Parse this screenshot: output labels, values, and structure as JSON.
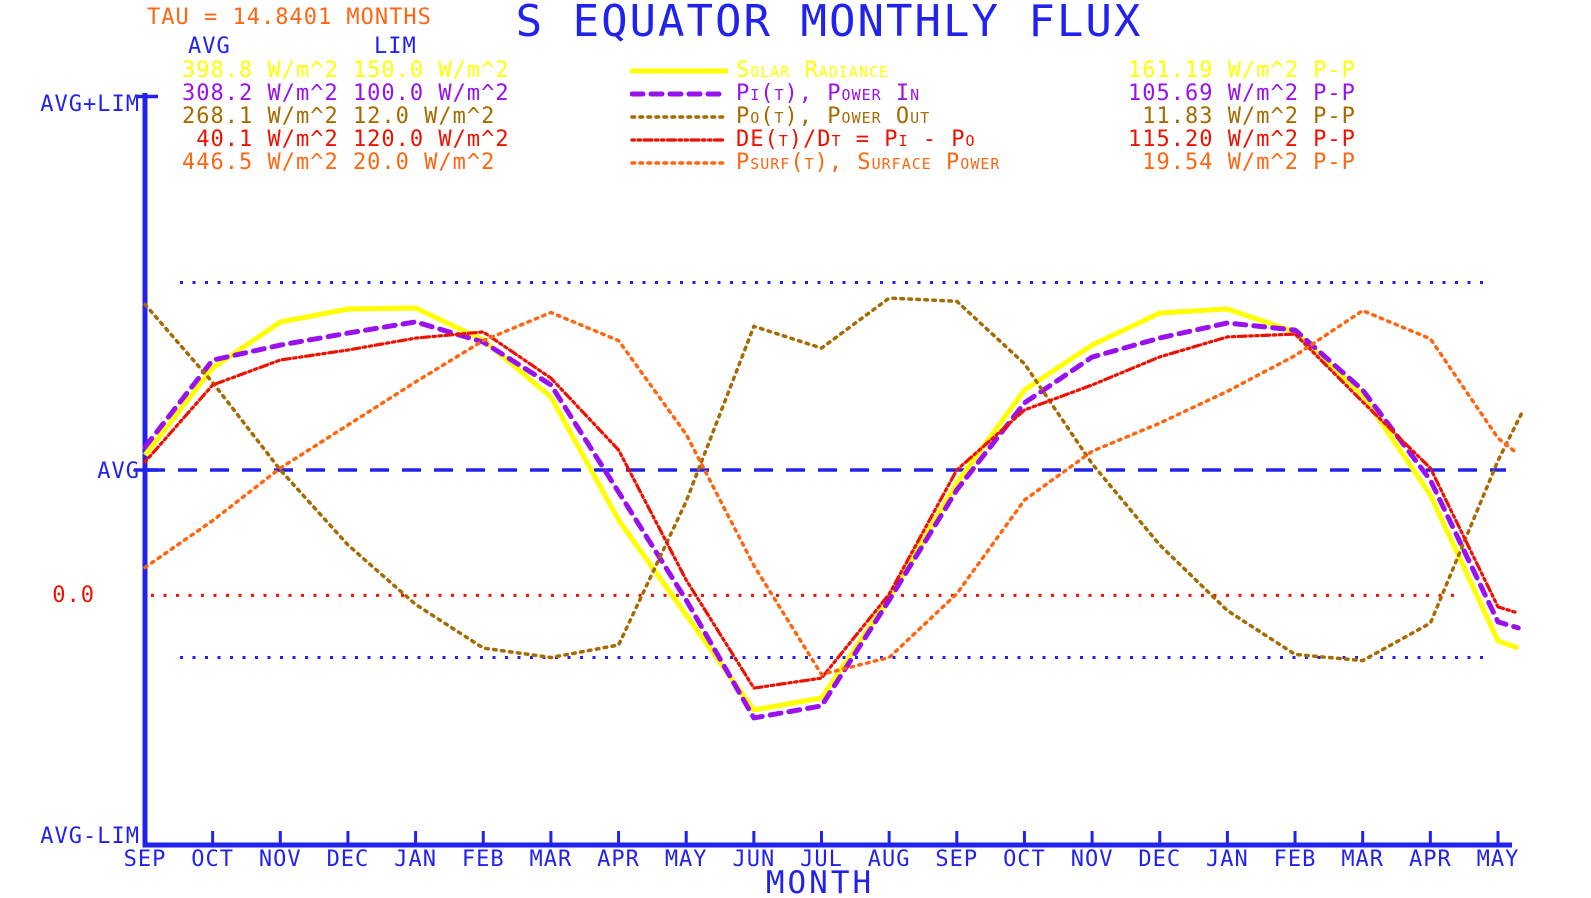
{
  "header": {
    "tau_text": "TAU = 14.8401 MONTHS",
    "title": "S EQUATOR MONTHLY FLUX",
    "avg_column_label": "AVG",
    "lim_column_label": "LIM"
  },
  "y_axis": {
    "top_label": "AVG+LIM",
    "avg_label": "AVG",
    "zero_label": "0.0",
    "bottom_label": "AVG-LIM"
  },
  "x_axis": {
    "label": "MONTH",
    "months": [
      "SEP",
      "OCT",
      "NOV",
      "DEC",
      "JAN",
      "FEB",
      "MAR",
      "APR",
      "MAY",
      "JUN",
      "JUL",
      "AUG",
      "SEP",
      "OCT",
      "NOV",
      "DEC",
      "JAN",
      "FEB",
      "MAR",
      "APR",
      "MAY"
    ]
  },
  "colors": {
    "axis_blue": "#2222ee",
    "zero_line_red": "#ee1100",
    "background": "#ffffff"
  },
  "rows": [
    {
      "avg_lim_text": "398.8 W/m^2 150.0 W/m^2",
      "label": "Solar Radiance",
      "pp_text": "161.19 W/m^2 P-P"
    },
    {
      "avg_lim_text": "308.2 W/m^2 100.0 W/m^2",
      "label": "Pi(t), Power In",
      "pp_text": "105.69 W/m^2 P-P"
    },
    {
      "avg_lim_text": "268.1 W/m^2 12.0 W/m^2",
      "label": "Po(t), Power Out",
      "pp_text": " 11.83 W/m^2 P-P"
    },
    {
      "avg_lim_text": " 40.1 W/m^2 120.0 W/m^2",
      "label": "DE(t)/Dt = Pi - Po",
      "pp_text": "115.20 W/m^2 P-P"
    },
    {
      "avg_lim_text": "446.5 W/m^2 20.0 W/m^2",
      "label": "Psurf(t), Surface Power",
      "pp_text": " 19.54 W/m^2 P-P"
    }
  ],
  "chart_data": {
    "type": "line",
    "title": "S EQUATOR MONTHLY FLUX",
    "xlabel": "MONTH",
    "tau_months": 14.8401,
    "x_categories": [
      "SEP",
      "OCT",
      "NOV",
      "DEC",
      "JAN",
      "FEB",
      "MAR",
      "APR",
      "MAY",
      "JUN",
      "JUL",
      "AUG",
      "SEP",
      "OCT",
      "NOV",
      "DEC",
      "JAN",
      "FEB",
      "MAR",
      "APR",
      "MAY"
    ],
    "y_axis_tick_labels": [
      "AVG+LIM",
      "AVG",
      "0.0",
      "AVG-LIM"
    ],
    "normalization_note": "Each series is plotted as y = AVG + (value - series_avg)/series_lim * LIM on the shared axis",
    "legend_position": "top",
    "grid": false,
    "series": [
      {
        "name": "Solar Radiance",
        "color": "#ffff00",
        "line_style": "solid",
        "avg": 398.8,
        "lim": 150.0,
        "peak_to_peak": 161.19,
        "units": "W/m^2",
        "values": [
          404.8,
          439.6,
          458.0,
          463.2,
          463.6,
          450.8,
          428.0,
          378.8,
          340.8,
          302.8,
          307.6,
          347.6,
          393.6,
          430.8,
          448.8,
          461.6,
          463.2,
          454.0,
          428.8,
          388.8,
          330.4
        ],
        "tail": {
          "months_past_end": 0.3,
          "value": 327.6
        }
      },
      {
        "name": "Pi(t), Power In",
        "color": "#9911ee",
        "line_style": "dashed",
        "avg": 308.2,
        "lim": 100.0,
        "peak_to_peak": 105.69,
        "units": "W/m^2",
        "values": [
          314.3,
          337.5,
          341.5,
          344.7,
          347.7,
          342.3,
          330.9,
          302.3,
          273.5,
          242.1,
          245.3,
          273.5,
          302.9,
          326.1,
          338.3,
          343.4,
          347.4,
          345.5,
          329.5,
          305.5,
          267.7
        ],
        "tail": {
          "months_past_end": 0.3,
          "value": 266.1
        }
      },
      {
        "name": "Po(t), Power Out",
        "color": "#a66a00",
        "line_style": "dotted",
        "avg": 268.1,
        "lim": 12.0,
        "peak_to_peak": 11.83,
        "units": "W/m^2",
        "values": [
          273.4,
          270.9,
          268.1,
          265.7,
          263.8,
          262.4,
          262.1,
          262.5,
          267.1,
          272.7,
          272.0,
          273.6,
          273.5,
          271.5,
          268.3,
          265.7,
          263.6,
          262.2,
          262.0,
          263.2,
          268.4
        ],
        "tail": {
          "months_past_end": 0.37,
          "value": 270.0
        }
      },
      {
        "name": "DE(t)/Dt = Pi - Po",
        "color": "#ee1100",
        "line_style": "dash-dot",
        "avg": 40.1,
        "lim": 120.0,
        "peak_to_peak": 115.2,
        "units": "W/m^2",
        "values": [
          42.7,
          67.3,
          75.3,
          78.5,
          82.3,
          84.3,
          69.5,
          46.5,
          4.9,
          -29.7,
          -26.5,
          0.4,
          40.1,
          59.3,
          67.3,
          76.3,
          82.7,
          83.6,
          61.9,
          40.7,
          -3.7
        ],
        "tail": {
          "months_past_end": 0.3,
          "value": -5.7
        }
      },
      {
        "name": "Psurf(t), Surface Power",
        "color": "#ff6611",
        "line_style": "dotted",
        "avg": 446.5,
        "lim": 20.0,
        "peak_to_peak": 19.54,
        "units": "W/m^2",
        "values": [
          441.3,
          443.8,
          446.6,
          448.9,
          451.2,
          453.4,
          454.9,
          453.4,
          448.4,
          441.4,
          435.6,
          436.5,
          439.9,
          444.9,
          447.5,
          449.0,
          450.7,
          452.6,
          455.0,
          453.5,
          448.2
        ],
        "tail": {
          "months_past_end": 0.28,
          "value": 447.4
        }
      }
    ],
    "reference_lines": [
      {
        "name": "avg",
        "style": "dashed",
        "color": "#2222ee",
        "meaning": "AVG level"
      },
      {
        "name": "plus-half-lim",
        "style": "dotted",
        "color": "#2222ee",
        "meaning": "AVG + LIM/2"
      },
      {
        "name": "minus-half-lim",
        "style": "dotted",
        "color": "#2222ee",
        "meaning": "AVG - LIM/2"
      },
      {
        "name": "zero",
        "style": "dotted",
        "color": "#ee1100",
        "meaning": "0.0 for DE(t)/Dt"
      }
    ]
  }
}
